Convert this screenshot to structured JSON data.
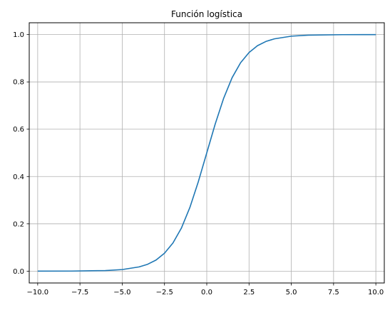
{
  "chart_data": {
    "type": "line",
    "title": "Función logística",
    "xlabel": "",
    "ylabel": "",
    "xlim": [
      -10.5,
      10.5
    ],
    "ylim": [
      -0.05,
      1.05
    ],
    "grid": true,
    "x_ticks": [
      -10.0,
      -7.5,
      -5.0,
      -2.5,
      0.0,
      2.5,
      5.0,
      7.5,
      10.0
    ],
    "x_tick_labels": [
      "−10.0",
      "−7.5",
      "−5.0",
      "−2.5",
      "0.0",
      "2.5",
      "5.0",
      "7.5",
      "10.0"
    ],
    "y_ticks": [
      0.0,
      0.2,
      0.4,
      0.6,
      0.8,
      1.0
    ],
    "y_tick_labels": [
      "0.0",
      "0.2",
      "0.4",
      "0.6",
      "0.8",
      "1.0"
    ],
    "series": [
      {
        "color": "#1f77b4",
        "x": [
          -10.0,
          -8.0,
          -6.0,
          -5.0,
          -4.0,
          -3.5,
          -3.0,
          -2.5,
          -2.0,
          -1.5,
          -1.0,
          -0.5,
          0.0,
          0.5,
          1.0,
          1.5,
          2.0,
          2.5,
          3.0,
          3.5,
          4.0,
          5.0,
          6.0,
          8.0,
          10.0
        ],
        "y": [
          0.0,
          0.0003,
          0.0025,
          0.0067,
          0.018,
          0.029,
          0.047,
          0.076,
          0.119,
          0.182,
          0.269,
          0.378,
          0.5,
          0.622,
          0.731,
          0.818,
          0.881,
          0.924,
          0.953,
          0.971,
          0.982,
          0.9933,
          0.9975,
          0.9997,
          1.0
        ]
      }
    ]
  }
}
